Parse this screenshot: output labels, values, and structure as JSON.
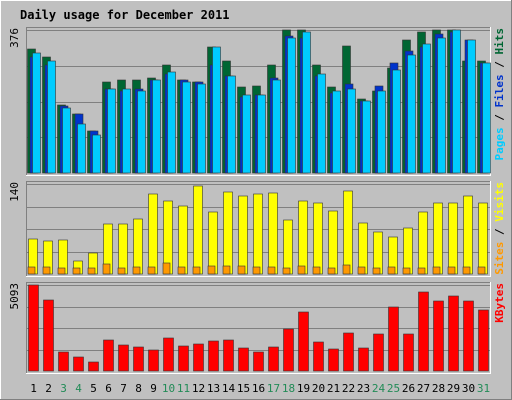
{
  "colors": {
    "background": "#c0c0c0",
    "panel": "#c0c0c0",
    "title": "#0000cc",
    "hits": "#006633",
    "files": "#0033cc",
    "pages": "#00ccff",
    "visits": "#ffff00",
    "sites": "#ff9900",
    "kbytes": "#ff0000",
    "weekend_tick": "#228b57",
    "weekday_tick": "#000000",
    "grid": "#808080"
  },
  "chart_data": {
    "type": "bar",
    "title": "Daily usage for December 2011",
    "categories": [
      "1",
      "2",
      "3",
      "4",
      "5",
      "6",
      "7",
      "8",
      "9",
      "10",
      "11",
      "12",
      "13",
      "14",
      "15",
      "16",
      "17",
      "18",
      "19",
      "20",
      "21",
      "22",
      "23",
      "24",
      "25",
      "26",
      "27",
      "28",
      "29",
      "30",
      "31"
    ],
    "weekend_days": [
      "3",
      "4",
      "10",
      "11",
      "17",
      "18",
      "24",
      "25",
      "31"
    ],
    "panels": [
      {
        "id": "top",
        "max_label": "376",
        "ylim": [
          0,
          376
        ],
        "legend": [
          "Pages",
          "Files",
          "Hits"
        ],
        "legend_separator": " / ",
        "series": [
          {
            "name": "Hits",
            "color": "#006633",
            "values": [
              325,
              305,
              180,
              155,
              110,
              240,
              245,
              245,
              250,
              285,
              245,
              240,
              330,
              295,
              225,
              230,
              285,
              380,
              375,
              285,
              225,
              335,
              195,
              215,
              275,
              350,
              370,
              385,
              385,
              295,
              295
            ]
          },
          {
            "name": "Files",
            "color": "#0033cc",
            "values": [
              305,
              285,
              175,
              155,
              110,
              220,
              215,
              220,
              245,
              260,
              245,
              240,
              285,
              255,
              200,
              205,
              250,
              360,
              355,
              255,
              210,
              235,
              190,
              230,
              290,
              320,
              330,
              365,
              370,
              350,
              290
            ]
          },
          {
            "name": "Pages",
            "color": "#00ccff",
            "values": [
              315,
              295,
              170,
              130,
              100,
              220,
              220,
              215,
              245,
              265,
              240,
              235,
              330,
              255,
              205,
              205,
              245,
              355,
              370,
              260,
              215,
              220,
              190,
              215,
              270,
              310,
              340,
              355,
              385,
              350,
              290
            ]
          }
        ]
      },
      {
        "id": "middle",
        "max_label": "140",
        "ylim": [
          0,
          140
        ],
        "legend": [
          "Sites",
          "Visits"
        ],
        "legend_separator": " / ",
        "series": [
          {
            "name": "Visits",
            "color": "#ffff00",
            "values": [
              54,
              52,
              53,
              20,
              33,
              77,
              78,
              86,
              124,
              114,
              105,
              137,
              97,
              128,
              122,
              124,
              126,
              84,
              114,
              110,
              98,
              129,
              80,
              66,
              57,
              72,
              97,
              110,
              111,
              122,
              111
            ]
          },
          {
            "name": "Sites",
            "color": "#ff9900",
            "values": [
              11,
              11,
              10,
              9,
              10,
              16,
              10,
              11,
              11,
              17,
              11,
              11,
              12,
              12,
              13,
              11,
              11,
              10,
              13,
              11,
              10,
              14,
              11,
              10,
              11,
              10,
              10,
              11,
              11,
              11,
              11
            ]
          }
        ]
      },
      {
        "id": "bottom",
        "max_label": "5093",
        "ylim": [
          0,
          5093
        ],
        "legend": [
          "KBytes"
        ],
        "legend_separator": "",
        "series": [
          {
            "name": "KBytes",
            "color": "#ff0000",
            "values": [
              5190,
              4230,
              1110,
              810,
              555,
              1860,
              1560,
              1450,
              1215,
              1980,
              1495,
              1600,
              1750,
              1815,
              1390,
              1150,
              1450,
              2500,
              3490,
              1730,
              1300,
              2240,
              1380,
              2180,
              3770,
              2180,
              4700,
              4140,
              4430,
              4140,
              3610
            ]
          }
        ]
      }
    ]
  }
}
